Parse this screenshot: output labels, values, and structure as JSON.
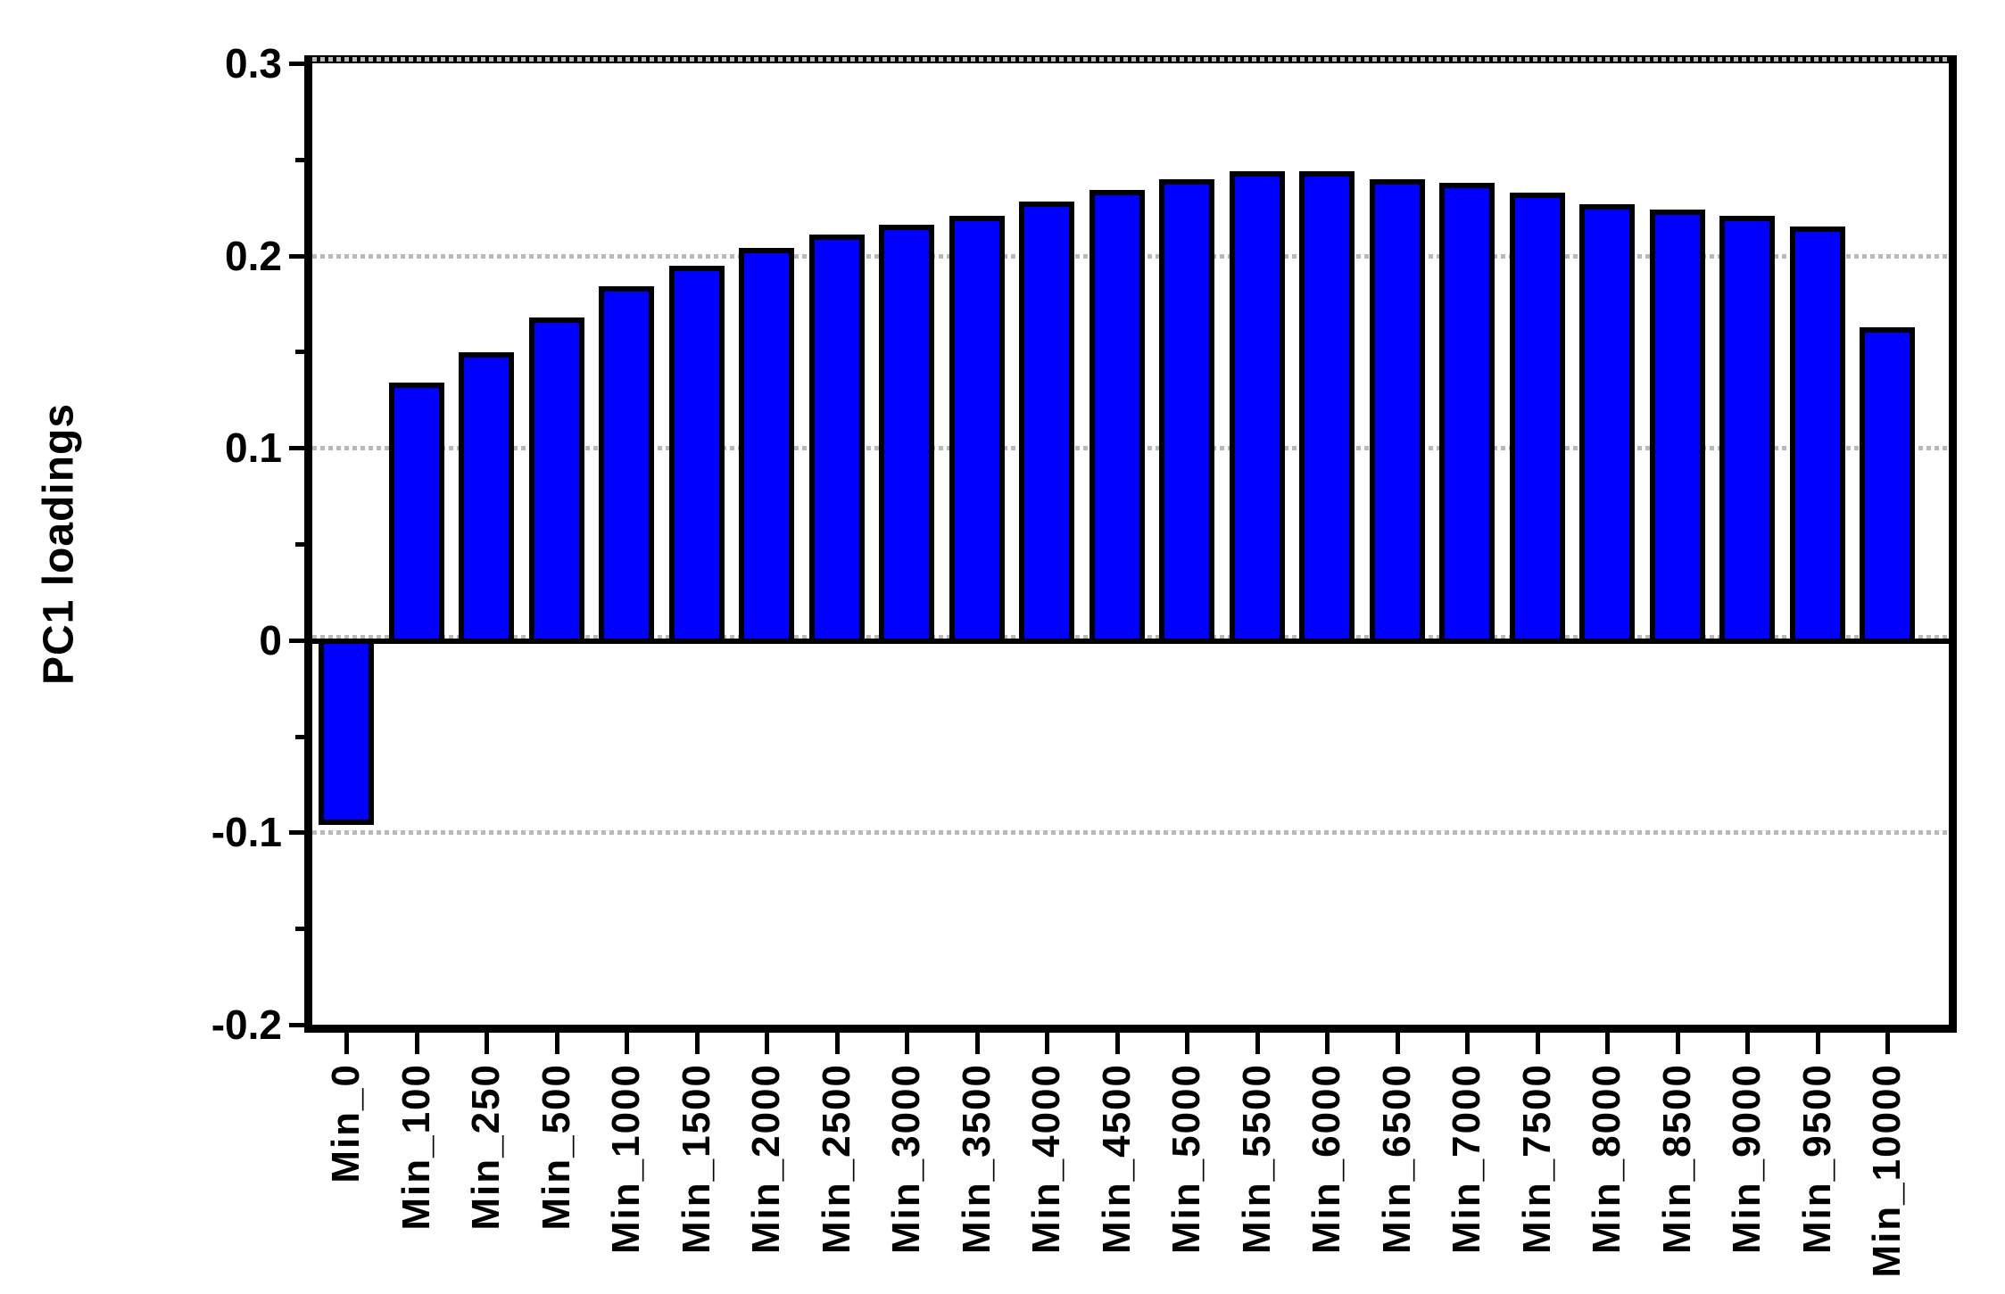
{
  "chart_data": {
    "type": "bar",
    "title": "",
    "xlabel": "",
    "ylabel": "PC1 loadings",
    "categories": [
      "Min_0",
      "Min_100",
      "Min_250",
      "Min_500",
      "Min_1000",
      "Min_1500",
      "Min_2000",
      "Min_2500",
      "Min_3000",
      "Min_3500",
      "Min_4000",
      "Min_4500",
      "Min_5000",
      "Min_5500",
      "Min_6000",
      "Min_6500",
      "Min_7000",
      "Min_7500",
      "Min_8000",
      "Min_8500",
      "Min_9000",
      "Min_9500",
      "Min_10000"
    ],
    "values": [
      -0.096,
      0.134,
      0.15,
      0.168,
      0.184,
      0.195,
      0.204,
      0.211,
      0.216,
      0.221,
      0.228,
      0.234,
      0.24,
      0.244,
      0.244,
      0.24,
      0.238,
      0.233,
      0.227,
      0.224,
      0.221,
      0.215,
      0.163
    ],
    "ylim": [
      -0.2,
      0.3
    ],
    "ytick_major": [
      0.3,
      0.2,
      0.1,
      0,
      -0.1,
      -0.2
    ],
    "ytick_labels": [
      "0.3",
      "0.2",
      "0.1",
      "0",
      "-0.1",
      "-0.2"
    ],
    "ytick_minor": [
      0.25,
      0.15,
      0.05,
      -0.05,
      -0.15
    ],
    "gridlines": [
      0.3,
      0.2,
      0.1,
      0,
      -0.1
    ],
    "grid_on": true,
    "grid_style": "dotted",
    "legend_position": "none",
    "zero_line": true,
    "colors": {
      "bar_fill": "#0000ff",
      "bar_border": "#000000",
      "grid": "#b9b9b9",
      "axis": "#000000",
      "background": "#ffffff"
    }
  }
}
